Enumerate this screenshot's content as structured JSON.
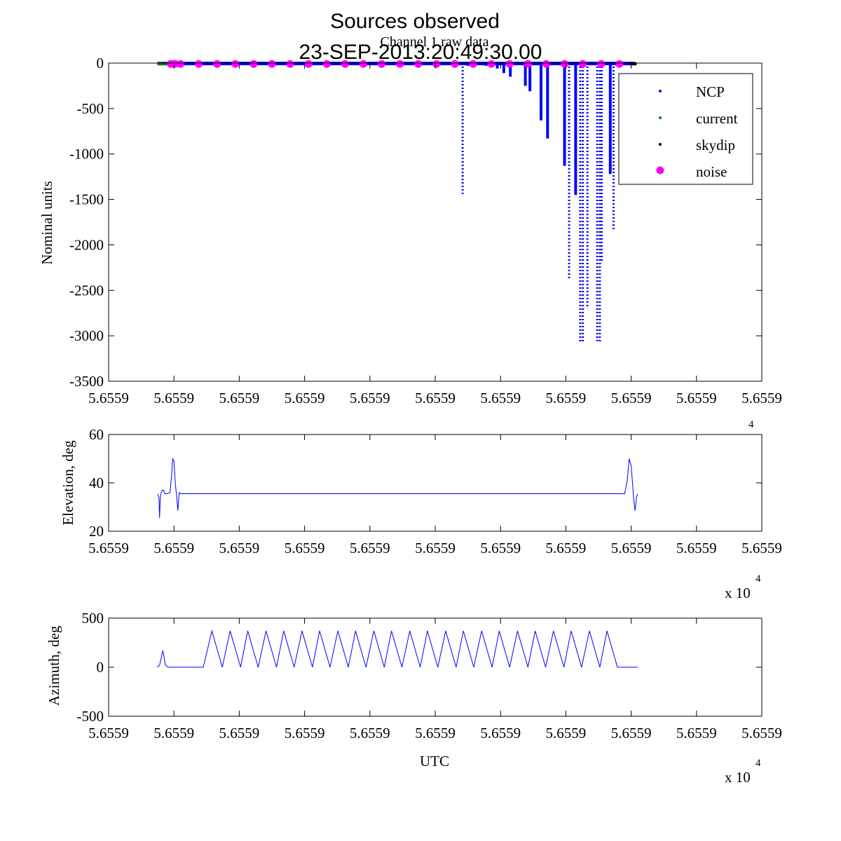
{
  "figure": {
    "title": "Sources observed",
    "subtitle": "Channel 1 raw data",
    "datetime": "23-SEP-2013:20:49:30.00",
    "x_exponent_label": "x 10",
    "x_exponent_power": "4"
  },
  "colors": {
    "ncp": "#0000ff",
    "current": "#008000",
    "skydip": "#000000",
    "noise": "#ff00ff",
    "axes": "#000000"
  },
  "chart_data": [
    {
      "type": "scatter",
      "name": "raw-data",
      "title": "Channel 1 raw data",
      "xlabel": "",
      "ylabel": "Nominal units",
      "xlim": [
        0,
        10
      ],
      "ylim": [
        -3500,
        0
      ],
      "xticks": [
        0,
        1,
        2,
        3,
        4,
        5,
        6,
        7,
        8,
        9,
        10
      ],
      "xtick_labels": [
        "5.6559",
        "5.6559",
        "5.6559",
        "5.6559",
        "5.6559",
        "5.6559",
        "5.6559",
        "5.6559",
        "5.6559",
        "5.6559",
        "5.6559"
      ],
      "yticks": [
        0,
        -500,
        -1000,
        -1500,
        -2000,
        -2500,
        -3000,
        -3500
      ],
      "ytick_labels": [
        "0",
        "-500",
        "-1000",
        "-1500",
        "-2000",
        "-2500",
        "-3000",
        "-3500"
      ],
      "legend": {
        "position": "top-right",
        "entries": [
          "NCP",
          "current",
          "skydip",
          "noise"
        ]
      },
      "baseline": {
        "x_start": 0.75,
        "x_end": 8.05,
        "y": -5
      },
      "current_points": [
        [
          0.77,
          0
        ],
        [
          0.8,
          0
        ],
        [
          0.85,
          0
        ],
        [
          0.9,
          0
        ],
        [
          0.95,
          0
        ]
      ],
      "skydip_points": [
        [
          8.0,
          0
        ],
        [
          8.03,
          0
        ],
        [
          8.06,
          0
        ]
      ],
      "noise_points": [
        [
          0.95,
          -10
        ],
        [
          0.98,
          -10
        ],
        [
          1.02,
          -10
        ],
        [
          1.1,
          -10
        ],
        [
          1.38,
          -10
        ],
        [
          1.66,
          -10
        ],
        [
          1.94,
          -10
        ],
        [
          2.22,
          -10
        ],
        [
          2.5,
          -10
        ],
        [
          2.78,
          -10
        ],
        [
          3.06,
          -10
        ],
        [
          3.34,
          -10
        ],
        [
          3.62,
          -10
        ],
        [
          3.9,
          -10
        ],
        [
          4.18,
          -10
        ],
        [
          4.46,
          -10
        ],
        [
          4.74,
          -10
        ],
        [
          5.02,
          -10
        ],
        [
          5.3,
          -10
        ],
        [
          5.58,
          -10
        ],
        [
          5.86,
          -10
        ],
        [
          6.14,
          -10
        ],
        [
          6.42,
          -10
        ],
        [
          6.7,
          -10
        ],
        [
          6.98,
          -10
        ],
        [
          7.26,
          -10
        ],
        [
          7.54,
          -10
        ],
        [
          7.82,
          -10
        ]
      ],
      "ncp_dips": [
        {
          "x": 5.42,
          "min": -1440,
          "style": "dotted"
        },
        {
          "x": 5.5,
          "min": -30,
          "style": "solid"
        },
        {
          "x": 5.78,
          "min": -30,
          "style": "solid"
        },
        {
          "x": 5.95,
          "min": -60,
          "style": "solid"
        },
        {
          "x": 6.05,
          "min": -110,
          "style": "solid"
        },
        {
          "x": 6.15,
          "min": -150,
          "style": "solid"
        },
        {
          "x": 6.38,
          "min": -250,
          "style": "solid"
        },
        {
          "x": 6.45,
          "min": -310,
          "style": "solid"
        },
        {
          "x": 6.62,
          "min": -630,
          "style": "solid"
        },
        {
          "x": 6.72,
          "min": -830,
          "style": "solid"
        },
        {
          "x": 6.98,
          "min": -1130,
          "style": "solid"
        },
        {
          "x": 7.05,
          "min": -2370,
          "style": "dotted"
        },
        {
          "x": 7.15,
          "min": -1450,
          "style": "solid"
        },
        {
          "x": 7.22,
          "min": -3080,
          "style": "dotted"
        },
        {
          "x": 7.26,
          "min": -3080,
          "style": "dotted"
        },
        {
          "x": 7.33,
          "min": -2700,
          "style": "dotted"
        },
        {
          "x": 7.48,
          "min": -3060,
          "style": "dotted"
        },
        {
          "x": 7.52,
          "min": -3080,
          "style": "dotted"
        },
        {
          "x": 7.55,
          "min": -2200,
          "style": "dotted"
        },
        {
          "x": 7.68,
          "min": -1220,
          "style": "solid"
        },
        {
          "x": 7.73,
          "min": -1830,
          "style": "dotted"
        }
      ]
    },
    {
      "type": "line",
      "name": "elevation",
      "xlabel": "",
      "ylabel": "Elevation, deg",
      "xlim": [
        0,
        10
      ],
      "ylim": [
        20,
        60
      ],
      "xticks": [
        0,
        1,
        2,
        3,
        4,
        5,
        6,
        7,
        8,
        9,
        10
      ],
      "xtick_labels": [
        "5.6559",
        "5.6559",
        "5.6559",
        "5.6559",
        "5.6559",
        "5.6559",
        "5.6559",
        "5.6559",
        "5.6559",
        "5.6559",
        "5.6559"
      ],
      "yticks": [
        20,
        40,
        60
      ],
      "ytick_labels": [
        "20",
        "40",
        "60"
      ],
      "x": [
        0.75,
        0.77,
        0.78,
        0.79,
        0.8,
        0.82,
        0.84,
        0.86,
        0.88,
        0.9,
        0.94,
        0.97,
        0.98,
        1.0,
        1.02,
        1.04,
        1.06,
        1.08,
        1.1,
        1.15,
        1.3,
        1.5,
        2.0,
        3.0,
        4.0,
        5.0,
        6.0,
        7.0,
        7.5,
        7.9,
        7.94,
        7.97,
        8.0,
        8.02,
        8.04,
        8.06,
        8.08,
        8.1
      ],
      "y": [
        35.5,
        34,
        25.5,
        33,
        35.5,
        37,
        37,
        35.5,
        35.5,
        35.5,
        36,
        45,
        50,
        49,
        40,
        35,
        28.5,
        36,
        35.5,
        35.5,
        35.5,
        35.5,
        35.5,
        35.5,
        35.5,
        35.5,
        35.5,
        35.5,
        35.5,
        35.5,
        41,
        50,
        47,
        40,
        33,
        28.5,
        34,
        35.5
      ]
    },
    {
      "type": "line",
      "name": "azimuth",
      "xlabel": "UTC",
      "ylabel": "Azimuth, deg",
      "xlim": [
        0,
        10
      ],
      "ylim": [
        -500,
        500
      ],
      "xticks": [
        0,
        1,
        2,
        3,
        4,
        5,
        6,
        7,
        8,
        9,
        10
      ],
      "xtick_labels": [
        "5.6559",
        "5.6559",
        "5.6559",
        "5.6559",
        "5.6559",
        "5.6559",
        "5.6559",
        "5.6559",
        "5.6559",
        "5.6559",
        "5.6559"
      ],
      "yticks": [
        -500,
        0,
        500
      ],
      "ytick_labels": [
        "-500",
        "0",
        "500"
      ],
      "x": [
        0.74,
        0.78,
        0.83,
        0.87,
        0.91,
        1.15,
        1.45,
        1.58,
        1.74,
        1.86,
        2.02,
        2.13,
        2.29,
        2.41,
        2.57,
        2.68,
        2.84,
        2.96,
        3.12,
        3.23,
        3.39,
        3.51,
        3.67,
        3.78,
        3.94,
        4.06,
        4.22,
        4.33,
        4.49,
        4.61,
        4.77,
        4.88,
        5.04,
        5.16,
        5.32,
        5.43,
        5.59,
        5.71,
        5.87,
        5.98,
        6.14,
        6.26,
        6.42,
        6.53,
        6.69,
        6.81,
        6.97,
        7.08,
        7.24,
        7.36,
        7.52,
        7.63,
        7.79,
        7.91,
        8.1
      ],
      "y": [
        0,
        20,
        170,
        20,
        0,
        0,
        0,
        370,
        0,
        370,
        0,
        370,
        0,
        370,
        0,
        370,
        0,
        370,
        0,
        370,
        0,
        370,
        0,
        370,
        0,
        370,
        0,
        370,
        0,
        370,
        0,
        370,
        0,
        370,
        0,
        370,
        0,
        370,
        0,
        370,
        0,
        370,
        0,
        370,
        0,
        370,
        0,
        370,
        0,
        370,
        0,
        370,
        0,
        0,
        0
      ]
    }
  ]
}
